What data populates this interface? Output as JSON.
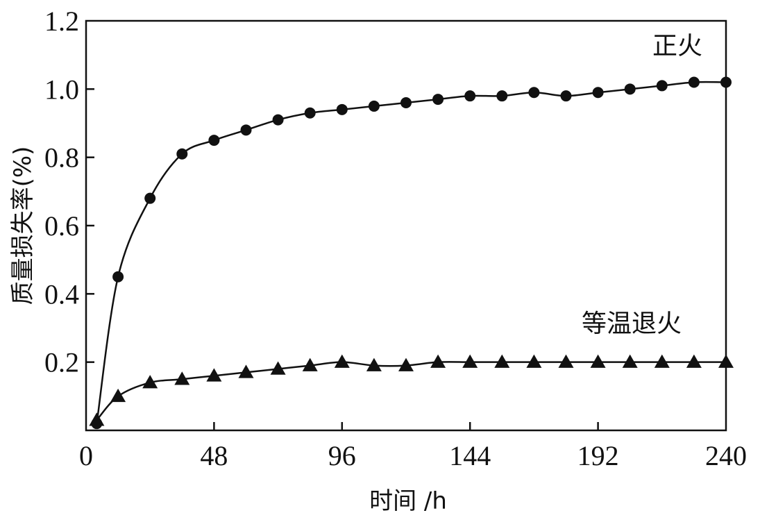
{
  "chart_data": {
    "type": "line",
    "xlabel": "时间 /h",
    "ylabel": "质量损失率(%)",
    "xlim": [
      0,
      240
    ],
    "ylim": [
      0,
      1.2
    ],
    "xticks": [
      0,
      48,
      96,
      144,
      192,
      240
    ],
    "xtick_labels": [
      "0",
      "48",
      "96",
      "144",
      "192",
      "240"
    ],
    "yticks": [
      0.2,
      0.4,
      0.6,
      0.8,
      1.0,
      1.2
    ],
    "ytick_labels": [
      "0.2",
      "0.4",
      "0.6",
      "0.8",
      "1.0",
      "1.2"
    ],
    "grid": false,
    "series": [
      {
        "name": "正火",
        "marker": "circle",
        "x": [
          4,
          12,
          24,
          36,
          48,
          60,
          72,
          84,
          96,
          108,
          120,
          132,
          144,
          156,
          168,
          180,
          192,
          204,
          216,
          228,
          240
        ],
        "y": [
          0.02,
          0.45,
          0.68,
          0.81,
          0.85,
          0.88,
          0.91,
          0.93,
          0.94,
          0.95,
          0.96,
          0.97,
          0.98,
          0.98,
          0.99,
          0.98,
          0.99,
          1.0,
          1.01,
          1.02,
          1.02
        ]
      },
      {
        "name": "等温退火",
        "marker": "triangle",
        "x": [
          4,
          12,
          24,
          36,
          48,
          60,
          72,
          84,
          96,
          108,
          120,
          132,
          144,
          156,
          168,
          180,
          192,
          204,
          216,
          228,
          240
        ],
        "y": [
          0.03,
          0.1,
          0.14,
          0.15,
          0.16,
          0.17,
          0.18,
          0.19,
          0.2,
          0.19,
          0.19,
          0.2,
          0.2,
          0.2,
          0.2,
          0.2,
          0.2,
          0.2,
          0.2,
          0.2,
          0.2
        ]
      }
    ]
  }
}
